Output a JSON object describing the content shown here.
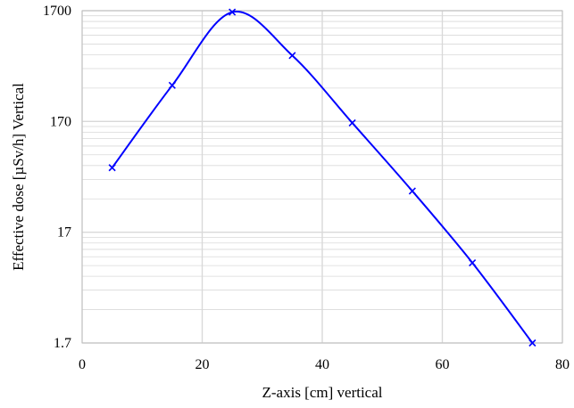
{
  "chart_data": {
    "type": "scatter",
    "title": "",
    "xlabel": "Z-axis [cm] vertical",
    "ylabel": "Effective dose [µSv/h] Vertical",
    "xlim": [
      0,
      80
    ],
    "ylim": [
      1.7,
      1700
    ],
    "y_scale": "log",
    "x_ticks": [
      0,
      20,
      40,
      60,
      80
    ],
    "x_tick_labels": [
      "0",
      "20",
      "40",
      "60",
      "80"
    ],
    "y_ticks": [
      1.7,
      17,
      170,
      1700
    ],
    "y_tick_labels": [
      "1.7",
      "17",
      "170",
      "1700"
    ],
    "grid": true,
    "minor_grid": true,
    "legend": "none",
    "marker": "x",
    "line_style": "smooth",
    "series_color": "#0000ff",
    "grid_color": "#d9d9d9",
    "series": [
      {
        "x": [
          5,
          15,
          25,
          35,
          45,
          55,
          65,
          75
        ],
        "values": [
          65,
          360,
          1650,
          670,
          165,
          40,
          9,
          1.7
        ]
      }
    ]
  }
}
